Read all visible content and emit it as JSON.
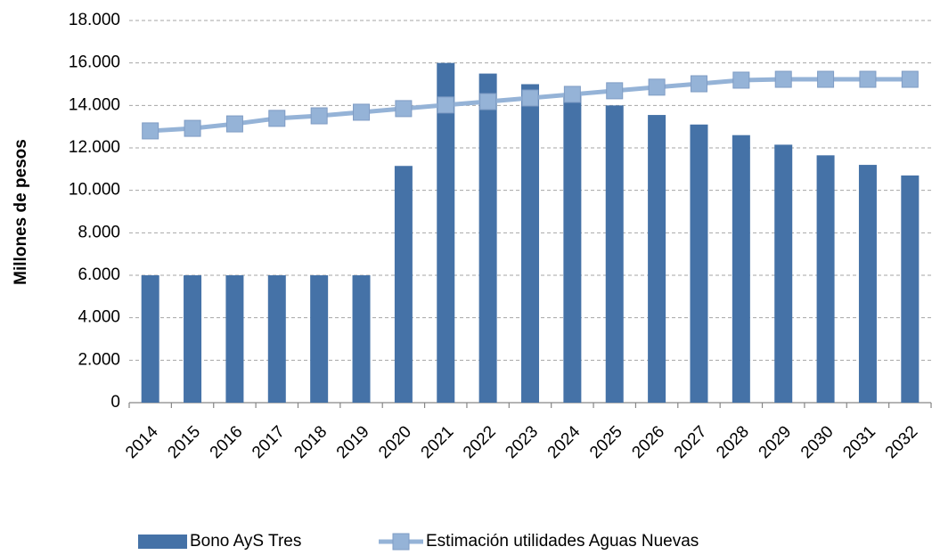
{
  "chart_data": {
    "type": "bar_line",
    "y_label": "Millones de pesos",
    "categories": [
      "2014",
      "2015",
      "2016",
      "2017",
      "2018",
      "2019",
      "2020",
      "2021",
      "2022",
      "2023",
      "2024",
      "2025",
      "2026",
      "2027",
      "2028",
      "2029",
      "2030",
      "2031",
      "2032"
    ],
    "series": [
      {
        "name": "Bono AyS Tres",
        "type": "bar",
        "color": "#4572a7",
        "values": [
          6000,
          6000,
          6000,
          6000,
          6000,
          6000,
          11150,
          16000,
          15500,
          15000,
          14500,
          14000,
          13550,
          13100,
          12600,
          12150,
          11650,
          11200,
          10700
        ]
      },
      {
        "name": "Estimación utilidades Aguas Nuevas",
        "type": "line",
        "color": "#95b3d7",
        "values": [
          12800,
          12920,
          13130,
          13390,
          13510,
          13680,
          13850,
          14020,
          14180,
          14350,
          14520,
          14690,
          14860,
          15020,
          15190,
          15230,
          15230,
          15230,
          15230
        ]
      }
    ],
    "ylim": [
      0,
      18000
    ],
    "yticks": [
      0,
      {
        "value": 2000,
        "label": "2.000"
      },
      {
        "value": 4000,
        "label": "4.000"
      },
      {
        "value": 6000,
        "label": "6.000"
      },
      {
        "value": 8000,
        "label": "8.000"
      },
      {
        "value": 10000,
        "label": "10.000"
      },
      {
        "value": 12000,
        "label": "12.000"
      },
      {
        "value": 14000,
        "label": "14.000"
      },
      {
        "value": 16000,
        "label": "16.000"
      },
      {
        "value": 18000,
        "label": "18.000"
      }
    ],
    "grid": true,
    "legend": "bottom"
  }
}
